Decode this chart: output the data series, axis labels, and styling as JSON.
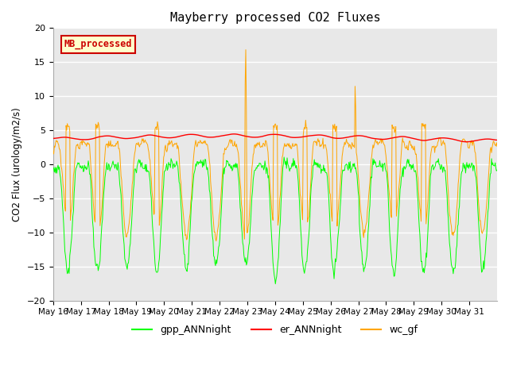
{
  "title": "Mayberry processed CO2 Fluxes",
  "ylabel": "CO2 Flux (urology/m2/s)",
  "ylim": [
    -20,
    20
  ],
  "yticks": [
    -20,
    -15,
    -10,
    -5,
    0,
    5,
    10,
    15,
    20
  ],
  "n_points": 720,
  "colors": {
    "gpp": "#00ff00",
    "er": "#ff0000",
    "wc": "#ffa500"
  },
  "legend_labels": [
    "gpp_ANNnight",
    "er_ANNnight",
    "wc_gf"
  ],
  "inset_label": "MB_processed",
  "inset_color": "#cc0000",
  "inset_bg": "#ffffcc",
  "bg_color": "#e8e8e8",
  "fig_bg": "#ffffff",
  "spine_color": "#aaaaaa"
}
